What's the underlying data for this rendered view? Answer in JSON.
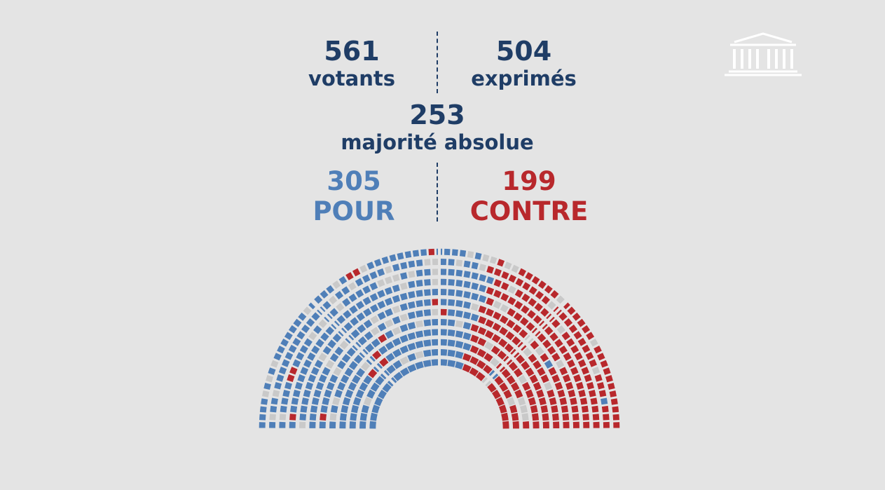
{
  "votants": {
    "value": "561",
    "label": "votants"
  },
  "exprimes": {
    "value": "504",
    "label": "exprimés"
  },
  "majorite": {
    "value": "253",
    "label": "majorité absolue"
  },
  "pour": {
    "value": "305",
    "label": "POUR"
  },
  "contre": {
    "value": "199",
    "label": "CONTRE"
  },
  "colors": {
    "background": "#e4e4e4",
    "text": "#1f3d66",
    "pour": "#4f7fb8",
    "contre": "#b8282c",
    "absent": "#c9c9c9",
    "logo": "#ffffff"
  },
  "logo_icon": "assemblee-nationale-building-icon",
  "chart_data": {
    "type": "hemicycle",
    "total_seats": 577,
    "votants": 561,
    "exprimes": 504,
    "majorite_absolue": 253,
    "series": [
      {
        "name": "POUR",
        "value": 305,
        "color": "#4f7fb8"
      },
      {
        "name": "CONTRE",
        "value": 199,
        "color": "#b8282c"
      }
    ]
  }
}
